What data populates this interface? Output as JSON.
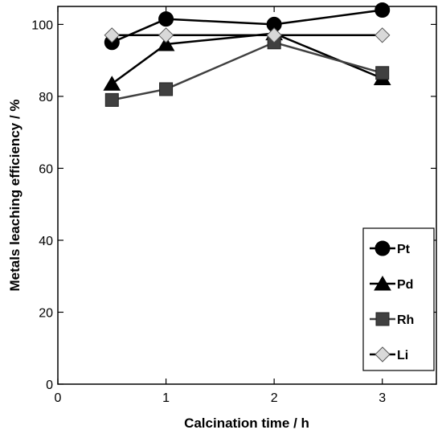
{
  "chart_data": {
    "type": "line",
    "title": "",
    "xlabel": "Calcination time / h",
    "ylabel": "Metals leaching efficiency / %",
    "xlim": [
      0,
      3.5
    ],
    "ylim": [
      0,
      105
    ],
    "xticks": [
      0,
      1,
      2,
      3
    ],
    "yticks": [
      0,
      20,
      40,
      60,
      80,
      100
    ],
    "grid": false,
    "legend_position": "bottom-right",
    "series": [
      {
        "name": "Pt",
        "marker": "circle",
        "color": "#000000",
        "line_color": "#000000",
        "x": [
          0.5,
          1,
          2,
          3
        ],
        "y": [
          95.0,
          101.5,
          100.0,
          104.0
        ]
      },
      {
        "name": "Pd",
        "marker": "triangle",
        "color": "#000000",
        "line_color": "#000000",
        "x": [
          0.5,
          1,
          2,
          3
        ],
        "y": [
          83.5,
          94.5,
          97.5,
          85.0
        ]
      },
      {
        "name": "Rh",
        "marker": "square",
        "color": "#404040",
        "line_color": "#404040",
        "x": [
          0.5,
          1,
          2,
          3
        ],
        "y": [
          79.0,
          82.0,
          95.0,
          86.5
        ]
      },
      {
        "name": "Li",
        "marker": "diamond",
        "color": "#d9d9d9",
        "line_color": "#000000",
        "x": [
          0.5,
          1,
          2,
          3
        ],
        "y": [
          97.0,
          97.0,
          97.0,
          97.0
        ]
      }
    ]
  }
}
